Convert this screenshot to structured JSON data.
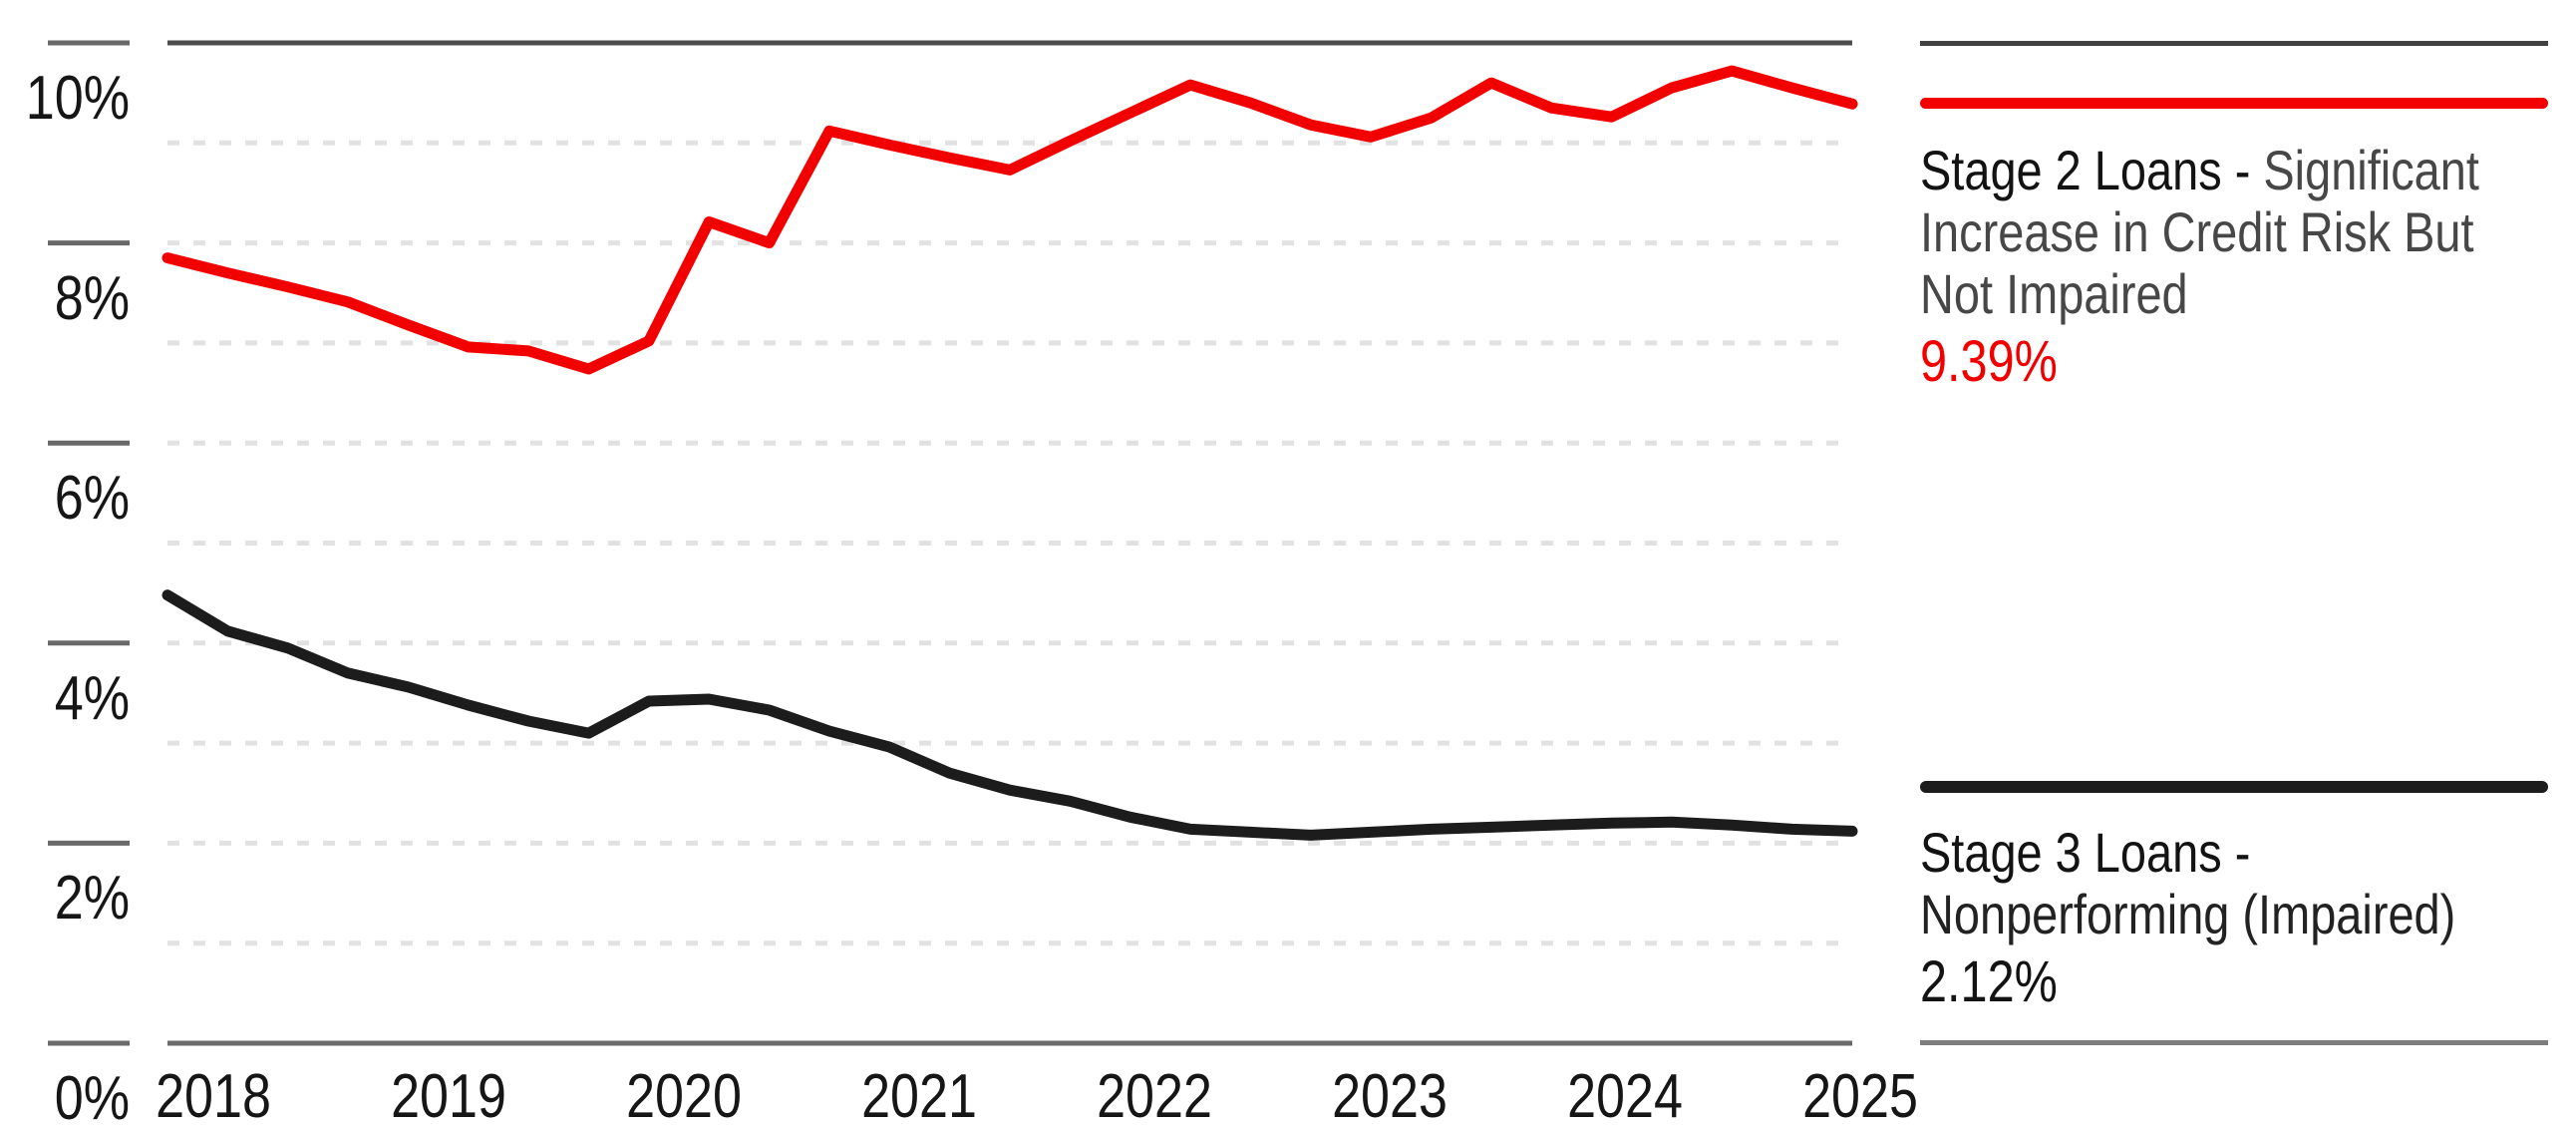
{
  "chart_data": {
    "type": "line",
    "title": "",
    "xlabel": "",
    "ylabel": "",
    "grid": "dashed horizontal lines at each 1% step, solid border at 10% top and 0% bottom",
    "legend_position": "right",
    "ylim": [
      0,
      10
    ],
    "y_axis": {
      "tick_labels": [
        "10%",
        "8%",
        "6%",
        "4%",
        "2%",
        "0%"
      ],
      "tick_values": [
        10,
        8,
        6,
        4,
        2,
        0
      ]
    },
    "x_axis": {
      "tick_labels": [
        "2018",
        "2019",
        "2020",
        "2021",
        "2022",
        "2023",
        "2024",
        "2025"
      ],
      "cadence": "quarterly data points, 29 points from late 2017 to early 2025"
    },
    "series": [
      {
        "name_label": "Stage 2 Loans - ",
        "metric_label": "Significant Increase in Credit Risk But Not Impaired",
        "value_label": "9.39%",
        "last_value": 9.39,
        "color": "#f20000",
        "metric_color": "#474747",
        "values": [
          7.85,
          7.7,
          7.56,
          7.41,
          7.18,
          6.96,
          6.92,
          6.74,
          7.02,
          8.21,
          8.0,
          9.12,
          8.98,
          8.85,
          8.73,
          9.02,
          9.3,
          9.58,
          9.4,
          9.18,
          9.06,
          9.25,
          9.6,
          9.35,
          9.26,
          9.55,
          9.72,
          9.55,
          9.39
        ]
      },
      {
        "name_label": "Stage 3 Loans - ",
        "metric_label": "Nonperforming (Impaired)",
        "value_label": "2.12%",
        "last_value": 2.12,
        "color": "#1c1c1c",
        "metric_color": "#222222",
        "values": [
          4.48,
          4.12,
          3.95,
          3.7,
          3.56,
          3.38,
          3.22,
          3.1,
          3.42,
          3.44,
          3.33,
          3.12,
          2.96,
          2.7,
          2.53,
          2.42,
          2.26,
          2.14,
          2.11,
          2.08,
          2.11,
          2.14,
          2.16,
          2.18,
          2.2,
          2.21,
          2.18,
          2.14,
          2.12
        ]
      }
    ],
    "style_colors": {
      "grid_dash": "#e2e2e2",
      "top_border": "#4d4d4d",
      "axis_line": "#696969",
      "tick_line": "#696969",
      "label_text": "#161616"
    }
  }
}
